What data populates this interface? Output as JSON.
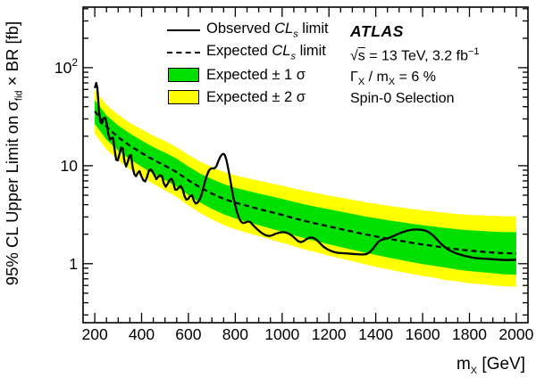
{
  "figure_info": {
    "experiment": "ATLAS",
    "sqrt_s_line": {
      "sqrt": "√",
      "s": "s",
      "rest": " = 13 TeV, 3.2 fb",
      "sup": "−1"
    },
    "width_line": {
      "gamma": "Γ",
      "gamma_sub": "X",
      "mid": " / m",
      "m_sub": "X",
      "rest": " = 6 %"
    },
    "selection_line": "Spin-0 Selection"
  },
  "legend": {
    "observed": {
      "pre": "Observed ",
      "cl": "CL",
      "sub": "s",
      "post": " limit"
    },
    "expected": {
      "pre": "Expected ",
      "cl": "CL",
      "sub": "s",
      "post": " limit"
    },
    "band1": {
      "pre": "Expected ± 1 ",
      "sigma": "σ"
    },
    "band2": {
      "pre": "Expected ± 2 ",
      "sigma": "σ"
    }
  },
  "axes": {
    "ylabel": {
      "pre": "95% CL Upper Limit on ",
      "sigma": "σ",
      "sub": "fid",
      "post": " × BR [fb]"
    },
    "xlabel": {
      "m": "m",
      "sub": "X",
      "post": " [GeV]"
    }
  },
  "chart_data": {
    "type": "line",
    "title": "",
    "xlabel": "mX [GeV]",
    "ylabel": "95% CL Upper Limit on σfid × BR [fb]",
    "legend_entries": [
      "Observed CLs limit",
      "Expected CLs limit",
      "Expected ± 1 σ",
      "Expected ± 2 σ"
    ],
    "legend_position": "top-left-inside",
    "grid": false,
    "colors": {
      "band_1sigma": "#00e000",
      "band_2sigma": "#ffff00",
      "observed": "#000000",
      "expected": "#000000"
    },
    "x_axis": {
      "min": 150,
      "max": 2050,
      "scale": "linear",
      "minor_step": 50,
      "major_ticks": [
        200,
        400,
        600,
        800,
        1000,
        1200,
        1400,
        1600,
        1800,
        2000
      ],
      "ticklabels": [
        "200",
        "400",
        "600",
        "800",
        "1000",
        "1200",
        "1400",
        "1600",
        "1800",
        "2000"
      ]
    },
    "y_axis": {
      "min": 0.25,
      "max": 415,
      "scale": "log",
      "major_ticks": [
        {
          "v": 1,
          "base": "1"
        },
        {
          "v": 10,
          "base": "10"
        },
        {
          "v": 100,
          "base": "10",
          "exp": "2"
        }
      ]
    },
    "bands": {
      "m": [
        200,
        250,
        300,
        350,
        400,
        450,
        500,
        550,
        600,
        650,
        700,
        750,
        800,
        850,
        900,
        950,
        1000,
        1050,
        1100,
        1150,
        1200,
        1250,
        1300,
        1350,
        1400,
        1450,
        1500,
        1550,
        1600,
        1650,
        1700,
        1750,
        1800,
        1850,
        1900,
        1950,
        2000
      ],
      "expected": [
        36,
        25,
        19.5,
        16,
        13.5,
        11.5,
        10,
        8.6,
        7.1,
        6.0,
        5.2,
        4.6,
        4.2,
        3.9,
        3.62,
        3.38,
        3.15,
        2.92,
        2.72,
        2.55,
        2.4,
        2.26,
        2.13,
        2.0,
        1.9,
        1.8,
        1.72,
        1.64,
        1.57,
        1.51,
        1.45,
        1.4,
        1.36,
        1.33,
        1.3,
        1.28,
        1.27
      ],
      "plus1": [
        46.8,
        32.7,
        25.7,
        21.3,
        18.1,
        15.5,
        13.6,
        11.8,
        9.8,
        8.3,
        7.3,
        6.5,
        5.95,
        5.56,
        5.2,
        4.89,
        4.59,
        4.28,
        4.01,
        3.79,
        3.59,
        3.4,
        3.22,
        3.05,
        2.91,
        2.78,
        2.67,
        2.56,
        2.47,
        2.39,
        2.31,
        2.24,
        2.19,
        2.16,
        2.12,
        2.1,
        2.1
      ],
      "minus1": [
        26.7,
        18.4,
        14.3,
        11.6,
        9.76,
        8.26,
        7.14,
        6.11,
        5.01,
        4.21,
        3.63,
        3.19,
        2.9,
        2.67,
        2.47,
        2.29,
        2.12,
        1.96,
        1.81,
        1.69,
        1.58,
        1.48,
        1.39,
        1.3,
        1.23,
        1.16,
        1.1,
        1.04,
        0.99,
        0.95,
        0.91,
        0.87,
        0.84,
        0.82,
        0.8,
        0.78,
        0.77
      ],
      "plus2": [
        59.4,
        41.8,
        33.0,
        27.4,
        23.4,
        20.2,
        17.8,
        15.4,
        12.9,
        11.0,
        9.66,
        8.64,
        7.98,
        7.49,
        7.03,
        6.63,
        6.25,
        5.85,
        5.51,
        5.22,
        4.96,
        4.72,
        4.49,
        4.26,
        4.09,
        3.91,
        3.77,
        3.63,
        3.51,
        3.4,
        3.3,
        3.21,
        3.15,
        3.11,
        3.07,
        3.05,
        3.05
      ],
      "minus2": [
        21.2,
        14.6,
        11.3,
        9.2,
        7.69,
        6.5,
        5.61,
        4.79,
        3.92,
        3.29,
        2.83,
        2.48,
        2.25,
        2.07,
        1.91,
        1.77,
        1.64,
        1.51,
        1.39,
        1.3,
        1.21,
        1.13,
        1.06,
        0.99,
        0.93,
        0.88,
        0.83,
        0.79,
        0.75,
        0.72,
        0.68,
        0.66,
        0.63,
        0.62,
        0.6,
        0.59,
        0.58
      ]
    },
    "observed": [
      [
        200,
        62
      ],
      [
        206,
        70
      ],
      [
        211,
        62
      ],
      [
        218,
        36
      ],
      [
        224,
        28
      ],
      [
        230,
        27
      ],
      [
        237,
        30.5
      ],
      [
        244,
        31
      ],
      [
        251,
        27
      ],
      [
        258,
        21
      ],
      [
        265,
        18.5
      ],
      [
        271,
        19
      ],
      [
        278,
        19.3
      ],
      [
        284,
        15
      ],
      [
        291,
        11.5
      ],
      [
        298,
        11.3
      ],
      [
        305,
        13
      ],
      [
        312,
        15.3
      ],
      [
        319,
        15.1
      ],
      [
        327,
        11
      ],
      [
        334,
        9.8
      ],
      [
        341,
        11
      ],
      [
        348,
        12.6
      ],
      [
        355,
        12.8
      ],
      [
        362,
        9.5
      ],
      [
        369,
        8.2
      ],
      [
        376,
        7.8
      ],
      [
        383,
        8.4
      ],
      [
        391,
        8.8
      ],
      [
        399,
        7.8
      ],
      [
        407,
        7.1
      ],
      [
        415,
        6.9
      ],
      [
        423,
        7.7
      ],
      [
        431,
        8.9
      ],
      [
        439,
        9.2
      ],
      [
        447,
        8.7
      ],
      [
        455,
        8.0
      ],
      [
        463,
        7.3
      ],
      [
        471,
        7.7
      ],
      [
        479,
        8.0
      ],
      [
        487,
        7.8
      ],
      [
        495,
        6.6
      ],
      [
        503,
        6.1
      ],
      [
        511,
        6.5
      ],
      [
        519,
        7.1
      ],
      [
        527,
        7.4
      ],
      [
        535,
        6.8
      ],
      [
        543,
        5.7
      ],
      [
        551,
        5.7
      ],
      [
        559,
        6.0
      ],
      [
        567,
        6.2
      ],
      [
        575,
        5.8
      ],
      [
        583,
        4.9
      ],
      [
        591,
        4.5
      ],
      [
        599,
        4.6
      ],
      [
        607,
        4.9
      ],
      [
        615,
        5.0
      ],
      [
        623,
        4.4
      ],
      [
        631,
        4.1
      ],
      [
        639,
        4.2
      ],
      [
        647,
        4.5
      ],
      [
        655,
        5.0
      ],
      [
        663,
        5.9
      ],
      [
        671,
        7.0
      ],
      [
        679,
        8.0
      ],
      [
        687,
        8.9
      ],
      [
        695,
        9.3
      ],
      [
        703,
        9.4
      ],
      [
        711,
        9.4
      ],
      [
        719,
        9.8
      ],
      [
        727,
        11.0
      ],
      [
        735,
        12.2
      ],
      [
        743,
        13.0
      ],
      [
        749,
        13.2
      ],
      [
        755,
        12.9
      ],
      [
        762,
        11.5
      ],
      [
        769,
        9.6
      ],
      [
        776,
        7.8
      ],
      [
        783,
        6.2
      ],
      [
        790,
        5.0
      ],
      [
        797,
        4.2
      ],
      [
        804,
        3.6
      ],
      [
        811,
        3.15
      ],
      [
        818,
        2.85
      ],
      [
        825,
        2.68
      ],
      [
        833,
        2.6
      ],
      [
        841,
        2.62
      ],
      [
        849,
        2.67
      ],
      [
        857,
        2.7
      ],
      [
        865,
        2.65
      ],
      [
        874,
        2.5
      ],
      [
        883,
        2.38
      ],
      [
        893,
        2.26
      ],
      [
        903,
        2.15
      ],
      [
        913,
        2.06
      ],
      [
        924,
        1.98
      ],
      [
        936,
        1.93
      ],
      [
        948,
        1.92
      ],
      [
        960,
        1.96
      ],
      [
        972,
        2.02
      ],
      [
        984,
        2.06
      ],
      [
        996,
        2.09
      ],
      [
        1008,
        2.1
      ],
      [
        1020,
        2.07
      ],
      [
        1032,
        2.0
      ],
      [
        1044,
        1.92
      ],
      [
        1056,
        1.8
      ],
      [
        1068,
        1.7
      ],
      [
        1080,
        1.66
      ],
      [
        1092,
        1.7
      ],
      [
        1104,
        1.78
      ],
      [
        1116,
        1.84
      ],
      [
        1128,
        1.85
      ],
      [
        1140,
        1.8
      ],
      [
        1152,
        1.71
      ],
      [
        1164,
        1.6
      ],
      [
        1176,
        1.5
      ],
      [
        1190,
        1.42
      ],
      [
        1205,
        1.36
      ],
      [
        1220,
        1.32
      ],
      [
        1240,
        1.29
      ],
      [
        1260,
        1.28
      ],
      [
        1280,
        1.27
      ],
      [
        1300,
        1.26
      ],
      [
        1320,
        1.25
      ],
      [
        1340,
        1.24
      ],
      [
        1358,
        1.25
      ],
      [
        1372,
        1.3
      ],
      [
        1386,
        1.4
      ],
      [
        1400,
        1.55
      ],
      [
        1412,
        1.68
      ],
      [
        1424,
        1.75
      ],
      [
        1436,
        1.78
      ],
      [
        1450,
        1.81
      ],
      [
        1465,
        1.87
      ],
      [
        1480,
        1.94
      ],
      [
        1495,
        2.01
      ],
      [
        1510,
        2.08
      ],
      [
        1525,
        2.14
      ],
      [
        1540,
        2.19
      ],
      [
        1555,
        2.22
      ],
      [
        1570,
        2.23
      ],
      [
        1585,
        2.23
      ],
      [
        1600,
        2.21
      ],
      [
        1615,
        2.16
      ],
      [
        1630,
        2.07
      ],
      [
        1645,
        1.94
      ],
      [
        1660,
        1.78
      ],
      [
        1675,
        1.63
      ],
      [
        1690,
        1.51
      ],
      [
        1705,
        1.42
      ],
      [
        1720,
        1.35
      ],
      [
        1735,
        1.3
      ],
      [
        1750,
        1.26
      ],
      [
        1765,
        1.23
      ],
      [
        1780,
        1.2
      ],
      [
        1795,
        1.18
      ],
      [
        1810,
        1.16
      ],
      [
        1830,
        1.14
      ],
      [
        1850,
        1.13
      ],
      [
        1875,
        1.12
      ],
      [
        1900,
        1.11
      ],
      [
        1925,
        1.1
      ],
      [
        1950,
        1.09
      ],
      [
        1975,
        1.09
      ],
      [
        2000,
        1.1
      ]
    ]
  }
}
